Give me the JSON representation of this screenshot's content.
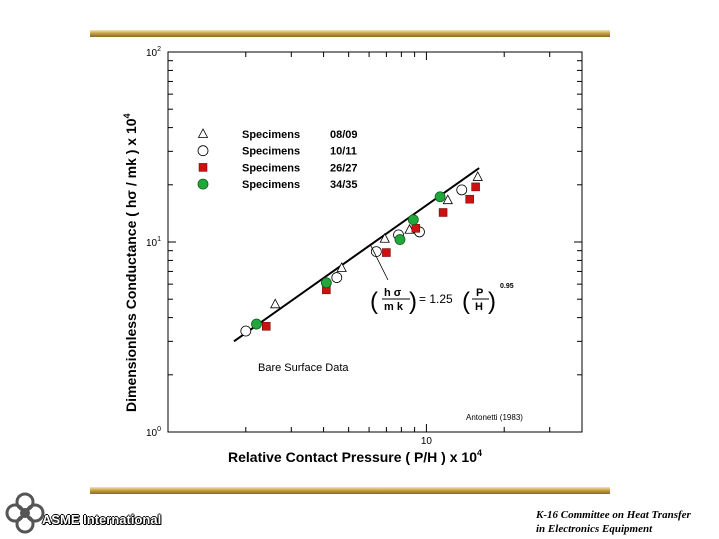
{
  "chart_data": {
    "type": "scatter",
    "xscale": "log",
    "yscale": "log",
    "xlim": [
      1,
      40
    ],
    "ylim": [
      1,
      100
    ],
    "xtick_labels": [
      {
        "value": 10,
        "label": "10"
      }
    ],
    "ytick_labels": [
      {
        "value": 1,
        "base": "10",
        "exp": "0"
      },
      {
        "value": 10,
        "base": "10",
        "exp": "1"
      },
      {
        "value": 100,
        "base": "10",
        "exp": "2"
      }
    ],
    "xlabel": "Relative Contact Pressure  ( P/H ) x 10",
    "xlabel_exp": "4",
    "ylabel": "Dimensionless Conductance  ( hσ / mk ) x 10",
    "ylabel_exp": "4",
    "series": [
      {
        "name": "Specimens",
        "id": "08/09",
        "marker": "triangle",
        "color": "#ffffff",
        "x": [
          2.6,
          4.7,
          6.9,
          8.6,
          12.1,
          15.8
        ],
        "y": [
          4.7,
          7.3,
          10.4,
          11.6,
          16.6,
          22.0
        ]
      },
      {
        "name": "Specimens",
        "id": "10/11",
        "marker": "circle",
        "color": "#ffffff",
        "x": [
          2.0,
          4.5,
          6.4,
          7.8,
          9.4,
          13.7
        ],
        "y": [
          3.4,
          6.5,
          8.9,
          10.9,
          11.3,
          18.8
        ]
      },
      {
        "name": "Specimens",
        "id": "26/27",
        "marker": "square",
        "color": "#cc1111",
        "x": [
          2.4,
          4.1,
          7.0,
          9.1,
          11.6,
          14.7,
          15.5
        ],
        "y": [
          3.6,
          5.6,
          8.8,
          11.8,
          14.3,
          16.8,
          19.5
        ]
      },
      {
        "name": "Specimens",
        "id": "34/35",
        "marker": "circle",
        "color": "#22a83a",
        "x": [
          2.2,
          4.1,
          7.9,
          8.9,
          11.3
        ],
        "y": [
          3.7,
          6.1,
          10.3,
          13.1,
          17.3
        ]
      }
    ],
    "fit_line": {
      "x": [
        1.8,
        16.0
      ],
      "y": [
        3.0,
        24.5
      ]
    },
    "equation": {
      "lhs_num": "h σ",
      "lhs_den": "m k",
      "coef": "= 1.25",
      "rhs_num": "P",
      "rhs_den": "H",
      "exponent": "0.95"
    },
    "annotations": {
      "region": "Bare Surface Data",
      "source": "Antonetti (1983)"
    },
    "grid": false,
    "legend_position": "top-left"
  },
  "footer": {
    "org": "ASME International",
    "committee_line1": "K-16 Committee on Heat Transfer",
    "committee_line2": "in Electronics Equipment"
  }
}
